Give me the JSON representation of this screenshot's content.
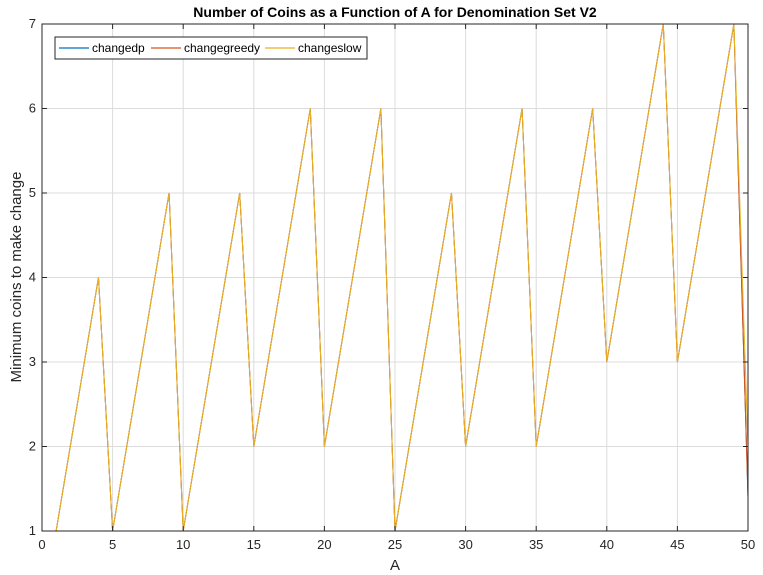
{
  "chart_data": {
    "type": "line",
    "title": "Number of Coins as a Function of A for Denomination Set V2",
    "xlabel": "A",
    "ylabel": "Minimum coins to make change",
    "xlim": [
      0,
      50
    ],
    "ylim": [
      1,
      7
    ],
    "xticks": [
      0,
      5,
      10,
      15,
      20,
      25,
      30,
      35,
      40,
      45,
      50
    ],
    "yticks": [
      1,
      2,
      3,
      4,
      5,
      6,
      7
    ],
    "grid": true,
    "legend_position": "top-left",
    "x": [
      1,
      2,
      3,
      4,
      5,
      6,
      7,
      8,
      9,
      10,
      11,
      12,
      13,
      14,
      15,
      16,
      17,
      18,
      19,
      20,
      21,
      22,
      23,
      24,
      25,
      26,
      27,
      28,
      29,
      30,
      31,
      32,
      33,
      34,
      35,
      36,
      37,
      38,
      39,
      40,
      41,
      42,
      43,
      44,
      45,
      46,
      47,
      48,
      49,
      50
    ],
    "series": [
      {
        "name": "changedp",
        "color": "#0072BD",
        "values": [
          1,
          2,
          3,
          4,
          1,
          2,
          3,
          4,
          5,
          1,
          2,
          3,
          4,
          5,
          2,
          3,
          4,
          5,
          6,
          2,
          3,
          4,
          5,
          6,
          1,
          2,
          3,
          4,
          5,
          2,
          3,
          4,
          5,
          6,
          2,
          3,
          4,
          5,
          6,
          3,
          4,
          5,
          6,
          7,
          3,
          4,
          5,
          6,
          7,
          1.4
        ]
      },
      {
        "name": "changegreedy",
        "color": "#D95319",
        "values": [
          1,
          2,
          3,
          4,
          1,
          2,
          3,
          4,
          5,
          1,
          2,
          3,
          4,
          5,
          2,
          3,
          4,
          5,
          6,
          2,
          3,
          4,
          5,
          6,
          1,
          2,
          3,
          4,
          5,
          2,
          3,
          4,
          5,
          6,
          2,
          3,
          4,
          5,
          6,
          3,
          4,
          5,
          6,
          7,
          3,
          4,
          5,
          6,
          7,
          1.4
        ]
      },
      {
        "name": "changeslow",
        "color": "#EDB120",
        "values": [
          1,
          2,
          3,
          4,
          1,
          2,
          3,
          4,
          5,
          1,
          2,
          3,
          4,
          5,
          2,
          3,
          4,
          5,
          6,
          2,
          3,
          4,
          5,
          6,
          1,
          2,
          3,
          4,
          5,
          2,
          3,
          4,
          5,
          6,
          2,
          3,
          4,
          5,
          6,
          3,
          4,
          5,
          6,
          7,
          3,
          4,
          5,
          6,
          7,
          2
        ]
      }
    ]
  }
}
